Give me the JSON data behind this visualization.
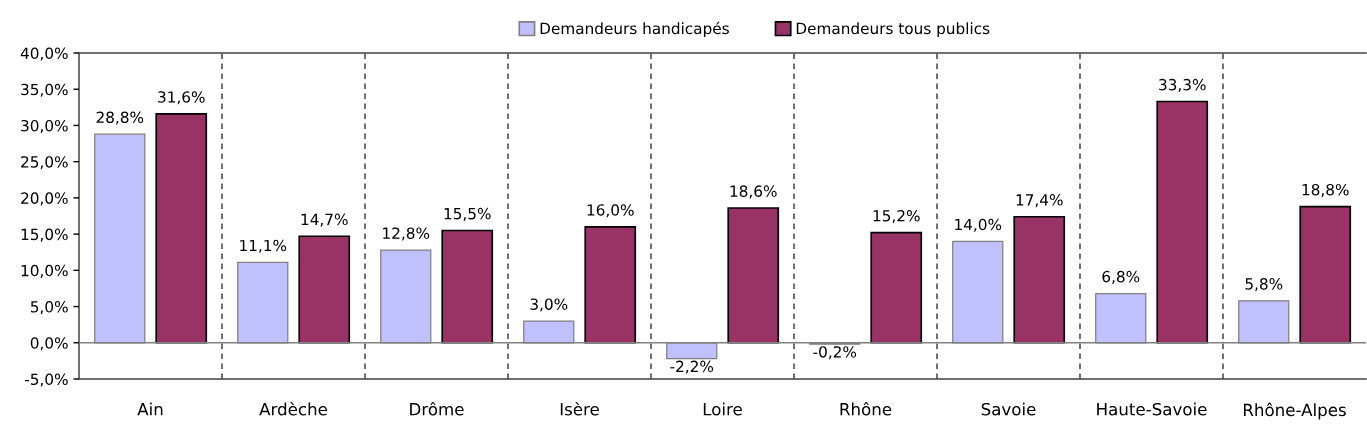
{
  "chart_data": {
    "type": "bar",
    "categories": [
      "Ain",
      "Ardèche",
      "Drôme",
      "Isère",
      "Loire",
      "Rhône",
      "Savoie",
      "Haute-Savoie",
      "Rhône-Alpes"
    ],
    "series": [
      {
        "name": "Demandeurs handicapés",
        "color": "#c0c0ff",
        "values": [
          28.8,
          11.1,
          12.8,
          3.0,
          -2.2,
          -0.2,
          14.0,
          6.8,
          5.8
        ],
        "value_labels": [
          "28,8%",
          "11,1%",
          "12,8%",
          "3,0%",
          "-2,2%",
          "-0,2%",
          "14,0%",
          "6,8%",
          "5,8%"
        ]
      },
      {
        "name": "Demandeurs tous publics",
        "color": "#993366",
        "values": [
          31.6,
          14.7,
          15.5,
          16.0,
          18.6,
          15.2,
          17.4,
          33.3,
          18.8
        ],
        "value_labels": [
          "31,6%",
          "14,7%",
          "15,5%",
          "16,0%",
          "18,6%",
          "15,2%",
          "17,4%",
          "33,3%",
          "18,8%"
        ]
      }
    ],
    "ylim": [
      -5,
      40
    ],
    "yticks": [
      {
        "value": -5,
        "label": "-5,0%"
      },
      {
        "value": 0,
        "label": "0,0%"
      },
      {
        "value": 5,
        "label": "5,0%"
      },
      {
        "value": 10,
        "label": "10,0%"
      },
      {
        "value": 15,
        "label": "15,0%"
      },
      {
        "value": 20,
        "label": "20,0%"
      },
      {
        "value": 25,
        "label": "25,0%"
      },
      {
        "value": 30,
        "label": "30,0%"
      },
      {
        "value": 35,
        "label": "35,0%"
      },
      {
        "value": 40,
        "label": "40,0%"
      }
    ],
    "grid": "x",
    "legend": "top"
  }
}
